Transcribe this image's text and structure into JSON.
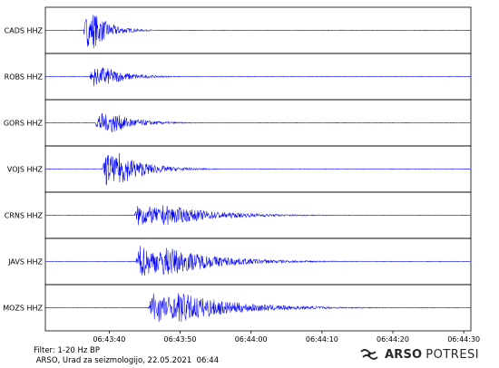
{
  "chart_data": {
    "type": "line",
    "title": "",
    "xlabel": "",
    "ylabel": "",
    "x_ticks": [
      "06:43:40",
      "06:43:50",
      "06:44:00",
      "06:44:10",
      "06:44:20",
      "06:44:30"
    ],
    "x_tick_seconds": [
      40,
      50,
      60,
      70,
      80,
      90
    ],
    "xlim_seconds": [
      31,
      91
    ],
    "series": [
      {
        "name": "CADS HHZ",
        "onset": 36.3,
        "peak": 1.0,
        "decay": 2.2,
        "color": "#0000ff"
      },
      {
        "name": "ROBS HHZ",
        "onset": 37.2,
        "peak": 0.55,
        "decay": 3.0,
        "color": "#0000ff"
      },
      {
        "name": "GORS HHZ",
        "onset": 38.0,
        "peak": 0.6,
        "decay": 3.2,
        "color": "#0000ff"
      },
      {
        "name": "VOJS HHZ",
        "onset": 39.0,
        "peak": 0.9,
        "decay": 3.5,
        "color": "#0000ff"
      },
      {
        "name": "CRNS HHZ",
        "onset": 43.5,
        "peak": 0.55,
        "decay": 6.5,
        "color": "#0000ff"
      },
      {
        "name": "JAVS HHZ",
        "onset": 43.7,
        "peak": 0.8,
        "decay": 6.5,
        "color": "#0000ff"
      },
      {
        "name": "MOZS HHZ",
        "onset": 45.5,
        "peak": 0.8,
        "decay": 7.0,
        "color": "#0000ff"
      }
    ]
  },
  "footer": {
    "filter": "Filter: 1-20 Hz BP",
    "credit": " ARSO, Urad za seizmologijo, 22.05.2021  06:44"
  },
  "logo": {
    "brand": "ARSO",
    "brand_suffix": "POTRESI",
    "icon": "earthquake-waves-icon"
  }
}
